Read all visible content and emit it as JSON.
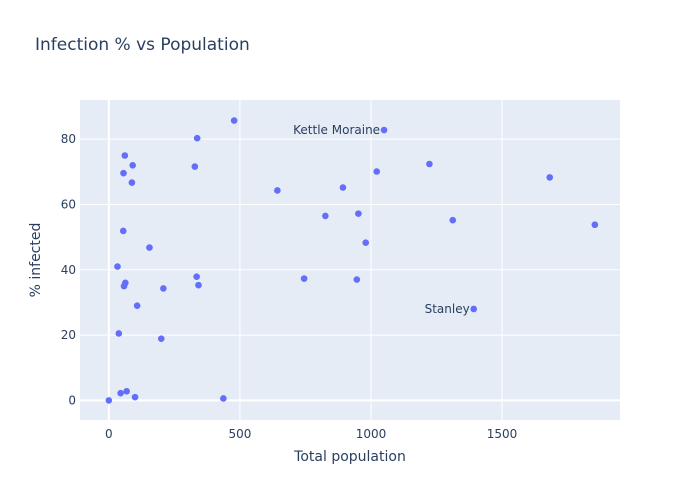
{
  "chart_data": {
    "type": "scatter",
    "title": "Infection % vs Population",
    "xlabel": "Total population",
    "ylabel": "% infected",
    "xlim": [
      -110,
      1950
    ],
    "ylim": [
      -6,
      92
    ],
    "xticks": [
      0,
      500,
      1000,
      1500
    ],
    "yticks": [
      0,
      20,
      40,
      60,
      80
    ],
    "grid": true,
    "colors": {
      "marker": "#636efa",
      "plot_bg": "#e5ecf6",
      "grid": "#ffffff",
      "text": "#2a3f5f"
    },
    "points": [
      {
        "x": 0,
        "y": 0
      },
      {
        "x": 33,
        "y": 41
      },
      {
        "x": 38,
        "y": 20.5
      },
      {
        "x": 45,
        "y": 2.2
      },
      {
        "x": 55,
        "y": 51.9
      },
      {
        "x": 56,
        "y": 69.6
      },
      {
        "x": 58,
        "y": 35
      },
      {
        "x": 61,
        "y": 75
      },
      {
        "x": 63,
        "y": 36
      },
      {
        "x": 68,
        "y": 2.8
      },
      {
        "x": 88,
        "y": 66.7
      },
      {
        "x": 91,
        "y": 72
      },
      {
        "x": 100,
        "y": 1
      },
      {
        "x": 108,
        "y": 29
      },
      {
        "x": 155,
        "y": 46.8
      },
      {
        "x": 200,
        "y": 18.9
      },
      {
        "x": 208,
        "y": 34.3
      },
      {
        "x": 328,
        "y": 71.6
      },
      {
        "x": 335,
        "y": 37.9
      },
      {
        "x": 337,
        "y": 80.3
      },
      {
        "x": 342,
        "y": 35.3
      },
      {
        "x": 437,
        "y": 0.6
      },
      {
        "x": 478,
        "y": 85.7
      },
      {
        "x": 643,
        "y": 64.3
      },
      {
        "x": 745,
        "y": 37.3
      },
      {
        "x": 826,
        "y": 56.5
      },
      {
        "x": 893,
        "y": 65.2
      },
      {
        "x": 946,
        "y": 37
      },
      {
        "x": 952,
        "y": 57.2
      },
      {
        "x": 980,
        "y": 48.3
      },
      {
        "x": 1022,
        "y": 70.1
      },
      {
        "x": 1050,
        "y": 82.8,
        "label": "Kettle Moraine"
      },
      {
        "x": 1223,
        "y": 72.4
      },
      {
        "x": 1312,
        "y": 55.2
      },
      {
        "x": 1392,
        "y": 28,
        "label": "Stanley"
      },
      {
        "x": 1682,
        "y": 68.3
      },
      {
        "x": 1854,
        "y": 53.8
      }
    ]
  }
}
